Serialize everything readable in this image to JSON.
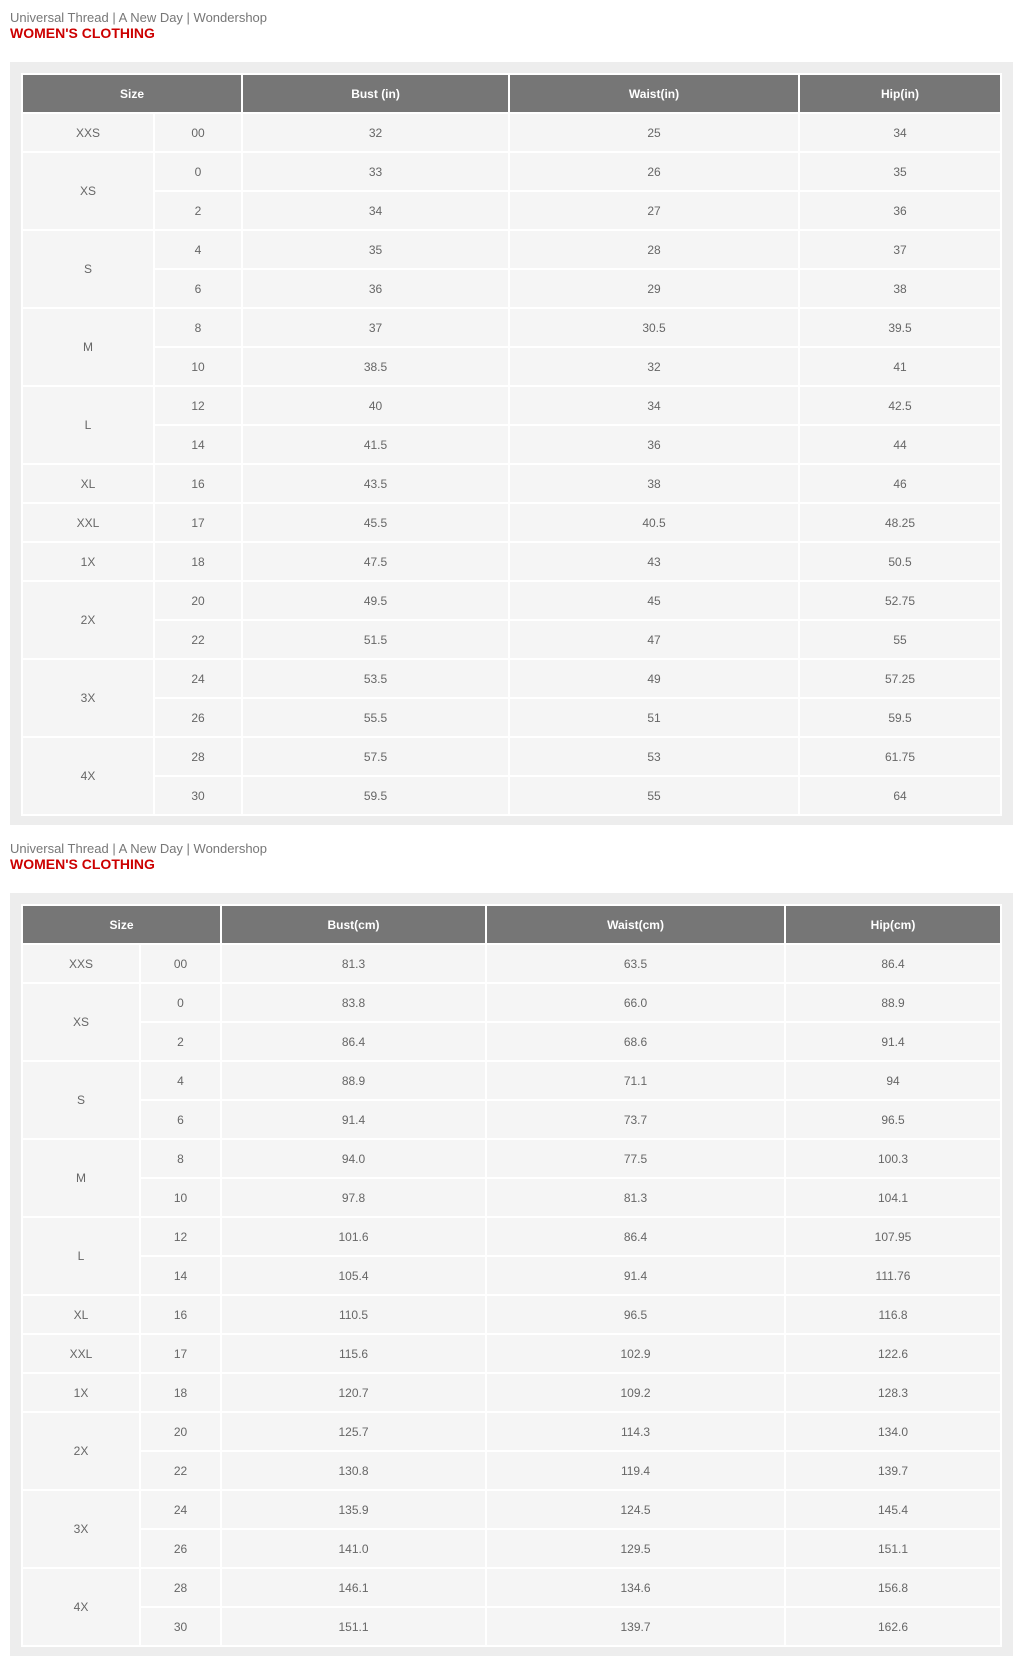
{
  "tables": [
    {
      "brand": "Universal Thread | A New Day | Wondershop",
      "category": "WOMEN'S CLOTHING",
      "headers": [
        "Size",
        "Bust (in)",
        "Waist(in)",
        "Hip(in)"
      ],
      "groups": [
        {
          "size": "XXS",
          "rows": [
            [
              "00",
              "32",
              "25",
              "34"
            ]
          ]
        },
        {
          "size": "XS",
          "rows": [
            [
              "0",
              "33",
              "26",
              "35"
            ],
            [
              "2",
              "34",
              "27",
              "36"
            ]
          ]
        },
        {
          "size": "S",
          "rows": [
            [
              "4",
              "35",
              "28",
              "37"
            ],
            [
              "6",
              "36",
              "29",
              "38"
            ]
          ]
        },
        {
          "size": "M",
          "rows": [
            [
              "8",
              "37",
              "30.5",
              "39.5"
            ],
            [
              "10",
              "38.5",
              "32",
              "41"
            ]
          ]
        },
        {
          "size": "L",
          "rows": [
            [
              "12",
              "40",
              "34",
              "42.5"
            ],
            [
              "14",
              "41.5",
              "36",
              "44"
            ]
          ]
        },
        {
          "size": "XL",
          "rows": [
            [
              "16",
              "43.5",
              "38",
              "46"
            ]
          ]
        },
        {
          "size": "XXL",
          "rows": [
            [
              "17",
              "45.5",
              "40.5",
              "48.25"
            ]
          ]
        },
        {
          "size": "1X",
          "rows": [
            [
              "18",
              "47.5",
              "43",
              "50.5"
            ]
          ]
        },
        {
          "size": "2X",
          "rows": [
            [
              "20",
              "49.5",
              "45",
              "52.75"
            ],
            [
              "22",
              "51.5",
              "47",
              "55"
            ]
          ]
        },
        {
          "size": "3X",
          "rows": [
            [
              "24",
              "53.5",
              "49",
              "57.25"
            ],
            [
              "26",
              "55.5",
              "51",
              "59.5"
            ]
          ]
        },
        {
          "size": "4X",
          "rows": [
            [
              "28",
              "57.5",
              "53",
              "61.75"
            ],
            [
              "30",
              "59.5",
              "55",
              "64"
            ]
          ]
        }
      ]
    },
    {
      "brand": "Universal Thread | A New Day | Wondershop",
      "category": "WOMEN'S CLOTHING",
      "headers": [
        "Size",
        "Bust(cm)",
        "Waist(cm)",
        "Hip(cm)"
      ],
      "groups": [
        {
          "size": "XXS",
          "rows": [
            [
              "00",
              "81.3",
              "63.5",
              "86.4"
            ]
          ]
        },
        {
          "size": "XS",
          "rows": [
            [
              "0",
              "83.8",
              "66.0",
              "88.9"
            ],
            [
              "2",
              "86.4",
              "68.6",
              "91.4"
            ]
          ]
        },
        {
          "size": "S",
          "rows": [
            [
              "4",
              "88.9",
              "71.1",
              "94"
            ],
            [
              "6",
              "91.4",
              "73.7",
              "96.5"
            ]
          ]
        },
        {
          "size": "M",
          "rows": [
            [
              "8",
              "94.0",
              "77.5",
              "100.3"
            ],
            [
              "10",
              "97.8",
              "81.3",
              "104.1"
            ]
          ]
        },
        {
          "size": "L",
          "rows": [
            [
              "12",
              "101.6",
              "86.4",
              "107.95"
            ],
            [
              "14",
              "105.4",
              "91.4",
              "111.76"
            ]
          ]
        },
        {
          "size": "XL",
          "rows": [
            [
              "16",
              "110.5",
              "96.5",
              "116.8"
            ]
          ]
        },
        {
          "size": "XXL",
          "rows": [
            [
              "17",
              "115.6",
              "102.9",
              "122.6"
            ]
          ]
        },
        {
          "size": "1X",
          "rows": [
            [
              "18",
              "120.7",
              "109.2",
              "128.3"
            ]
          ]
        },
        {
          "size": "2X",
          "rows": [
            [
              "20",
              "125.7",
              "114.3",
              "134.0"
            ],
            [
              "22",
              "130.8",
              "119.4",
              "139.7"
            ]
          ]
        },
        {
          "size": "3X",
          "rows": [
            [
              "24",
              "135.9",
              "124.5",
              "145.4"
            ],
            [
              "26",
              "141.0",
              "129.5",
              "151.1"
            ]
          ]
        },
        {
          "size": "4X",
          "rows": [
            [
              "28",
              "146.1",
              "134.6",
              "156.8"
            ],
            [
              "30",
              "151.1",
              "139.7",
              "162.6"
            ]
          ]
        }
      ]
    }
  ]
}
